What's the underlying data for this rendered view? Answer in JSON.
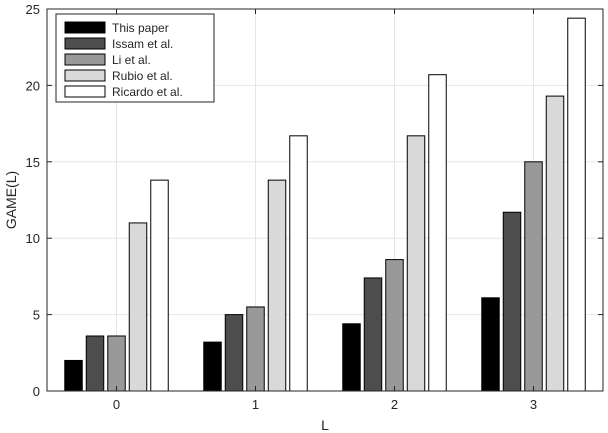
{
  "chart_data": {
    "type": "bar",
    "title": "",
    "xlabel": "L",
    "ylabel": "GAME(L)",
    "categories": [
      "0",
      "1",
      "2",
      "3"
    ],
    "ylim": [
      0,
      25
    ],
    "yticks": [
      "0",
      "5",
      "10",
      "15",
      "20",
      "25"
    ],
    "grid": true,
    "legend_position": "top-left",
    "series": [
      {
        "name": "This paper",
        "color": "#000000",
        "values": [
          2.0,
          3.2,
          4.4,
          6.1
        ]
      },
      {
        "name": "Issam et al.",
        "color": "#4d4d4d",
        "values": [
          3.6,
          5.0,
          7.4,
          11.7
        ]
      },
      {
        "name": "Li et al.",
        "color": "#999999",
        "values": [
          3.6,
          5.5,
          8.6,
          15.0
        ]
      },
      {
        "name": "Rubio et al.",
        "color": "#d9d9d9",
        "values": [
          11.0,
          13.8,
          16.7,
          19.3
        ]
      },
      {
        "name": "Ricardo et al.",
        "color": "#ffffff",
        "values": [
          13.8,
          16.7,
          20.7,
          24.4
        ]
      }
    ]
  }
}
